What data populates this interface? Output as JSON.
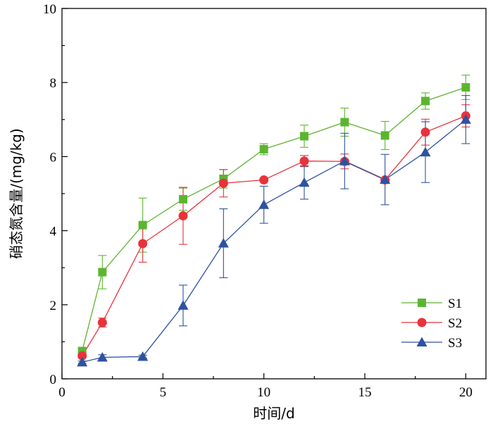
{
  "chart_data": {
    "type": "line",
    "xlabel": "时间/d",
    "ylabel": "硝态氮含量/(mg/kg)",
    "xlim": [
      0,
      21
    ],
    "ylim": [
      0,
      10
    ],
    "xticks": [
      0,
      5,
      10,
      15,
      20
    ],
    "yticks": [
      0,
      2,
      4,
      6,
      8,
      10
    ],
    "grid": false,
    "legend_position": "bottom-right",
    "series": [
      {
        "name": "S1",
        "color": "#5cb531",
        "marker": "square",
        "x": [
          1,
          2,
          4,
          6,
          8,
          10,
          12,
          14,
          16,
          18,
          20
        ],
        "y": [
          0.75,
          2.88,
          4.15,
          4.85,
          5.4,
          6.2,
          6.55,
          6.93,
          6.57,
          7.5,
          7.87
        ],
        "err": [
          0.05,
          0.45,
          0.73,
          0.3,
          0.25,
          0.15,
          0.3,
          0.38,
          0.38,
          0.22,
          0.33
        ]
      },
      {
        "name": "S2",
        "color": "#e8333c",
        "marker": "circle",
        "x": [
          1,
          2,
          4,
          6,
          8,
          10,
          12,
          14,
          16,
          18,
          20
        ],
        "y": [
          0.62,
          1.52,
          3.65,
          4.4,
          5.28,
          5.37,
          5.88,
          5.87,
          5.37,
          6.66,
          7.1
        ],
        "err": [
          0.05,
          0.12,
          0.5,
          0.77,
          0.37,
          0.05,
          0.15,
          0.2,
          0.05,
          0.35,
          0.3
        ]
      },
      {
        "name": "S3",
        "color": "#2f52a0",
        "marker": "triangle",
        "x": [
          1,
          2,
          4,
          6,
          8,
          10,
          12,
          14,
          16,
          18,
          20
        ],
        "y": [
          0.45,
          0.58,
          0.6,
          1.98,
          3.66,
          4.7,
          5.3,
          5.88,
          5.38,
          6.12,
          7.0
        ],
        "err": [
          0.03,
          0.07,
          0.04,
          0.55,
          0.93,
          0.5,
          0.45,
          0.75,
          0.68,
          0.82,
          0.65
        ]
      }
    ]
  }
}
